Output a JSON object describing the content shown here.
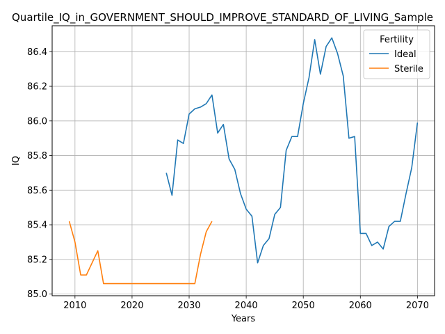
{
  "chart_data": {
    "type": "line",
    "title": "Quartile_IQ_in_GOVERNMENT_SHOULD_IMPROVE_STANDARD_OF_LIVING_Sample",
    "xlabel": "Years",
    "ylabel": "IQ",
    "xlim": [
      2006,
      2073
    ],
    "ylim": [
      84.99,
      86.55
    ],
    "xticks": [
      2010,
      2020,
      2030,
      2040,
      2050,
      2060,
      2070
    ],
    "yticks": [
      85.0,
      85.2,
      85.4,
      85.6,
      85.8,
      86.0,
      86.2,
      86.4
    ],
    "ytick_labels": [
      "85.0",
      "85.2",
      "85.4",
      "85.6",
      "85.8",
      "86.0",
      "86.2",
      "86.4"
    ],
    "grid": true,
    "legend": {
      "title": "Fertility",
      "placement": "top-right"
    },
    "series": [
      {
        "name": "Ideal",
        "color": "#1f77b4",
        "x": [
          2026,
          2027,
          2028,
          2029,
          2030,
          2031,
          2032,
          2033,
          2034,
          2035,
          2036,
          2037,
          2038,
          2039,
          2040,
          2041,
          2042,
          2043,
          2044,
          2045,
          2046,
          2047,
          2048,
          2049,
          2050,
          2051,
          2052,
          2053,
          2054,
          2055,
          2056,
          2057,
          2058,
          2059,
          2060,
          2061,
          2062,
          2063,
          2064,
          2065,
          2066,
          2067,
          2068,
          2069,
          2070
        ],
        "values": [
          85.7,
          85.57,
          85.89,
          85.87,
          86.04,
          86.07,
          86.08,
          86.1,
          86.15,
          85.93,
          85.98,
          85.78,
          85.72,
          85.58,
          85.49,
          85.45,
          85.18,
          85.28,
          85.32,
          85.46,
          85.5,
          85.83,
          85.91,
          85.91,
          86.1,
          86.25,
          86.47,
          86.27,
          86.43,
          86.48,
          86.39,
          86.26,
          85.9,
          85.91,
          85.35,
          85.35,
          85.28,
          85.3,
          85.26,
          85.39,
          85.42,
          85.42,
          85.58,
          85.73,
          85.99
        ]
      },
      {
        "name": "Sterile",
        "color": "#ff7f0e",
        "x": [
          2009,
          2010,
          2011,
          2012,
          2013,
          2014,
          2015,
          2016,
          2017,
          2018,
          2019,
          2020,
          2021,
          2022,
          2023,
          2024,
          2025,
          2026,
          2027,
          2028,
          2029,
          2030,
          2031,
          2032,
          2033,
          2034
        ],
        "values": [
          85.42,
          85.3,
          85.11,
          85.11,
          85.18,
          85.25,
          85.06,
          85.06,
          85.06,
          85.06,
          85.06,
          85.06,
          85.06,
          85.06,
          85.06,
          85.06,
          85.06,
          85.06,
          85.06,
          85.06,
          85.06,
          85.06,
          85.06,
          85.23,
          85.36,
          85.42
        ]
      }
    ]
  }
}
